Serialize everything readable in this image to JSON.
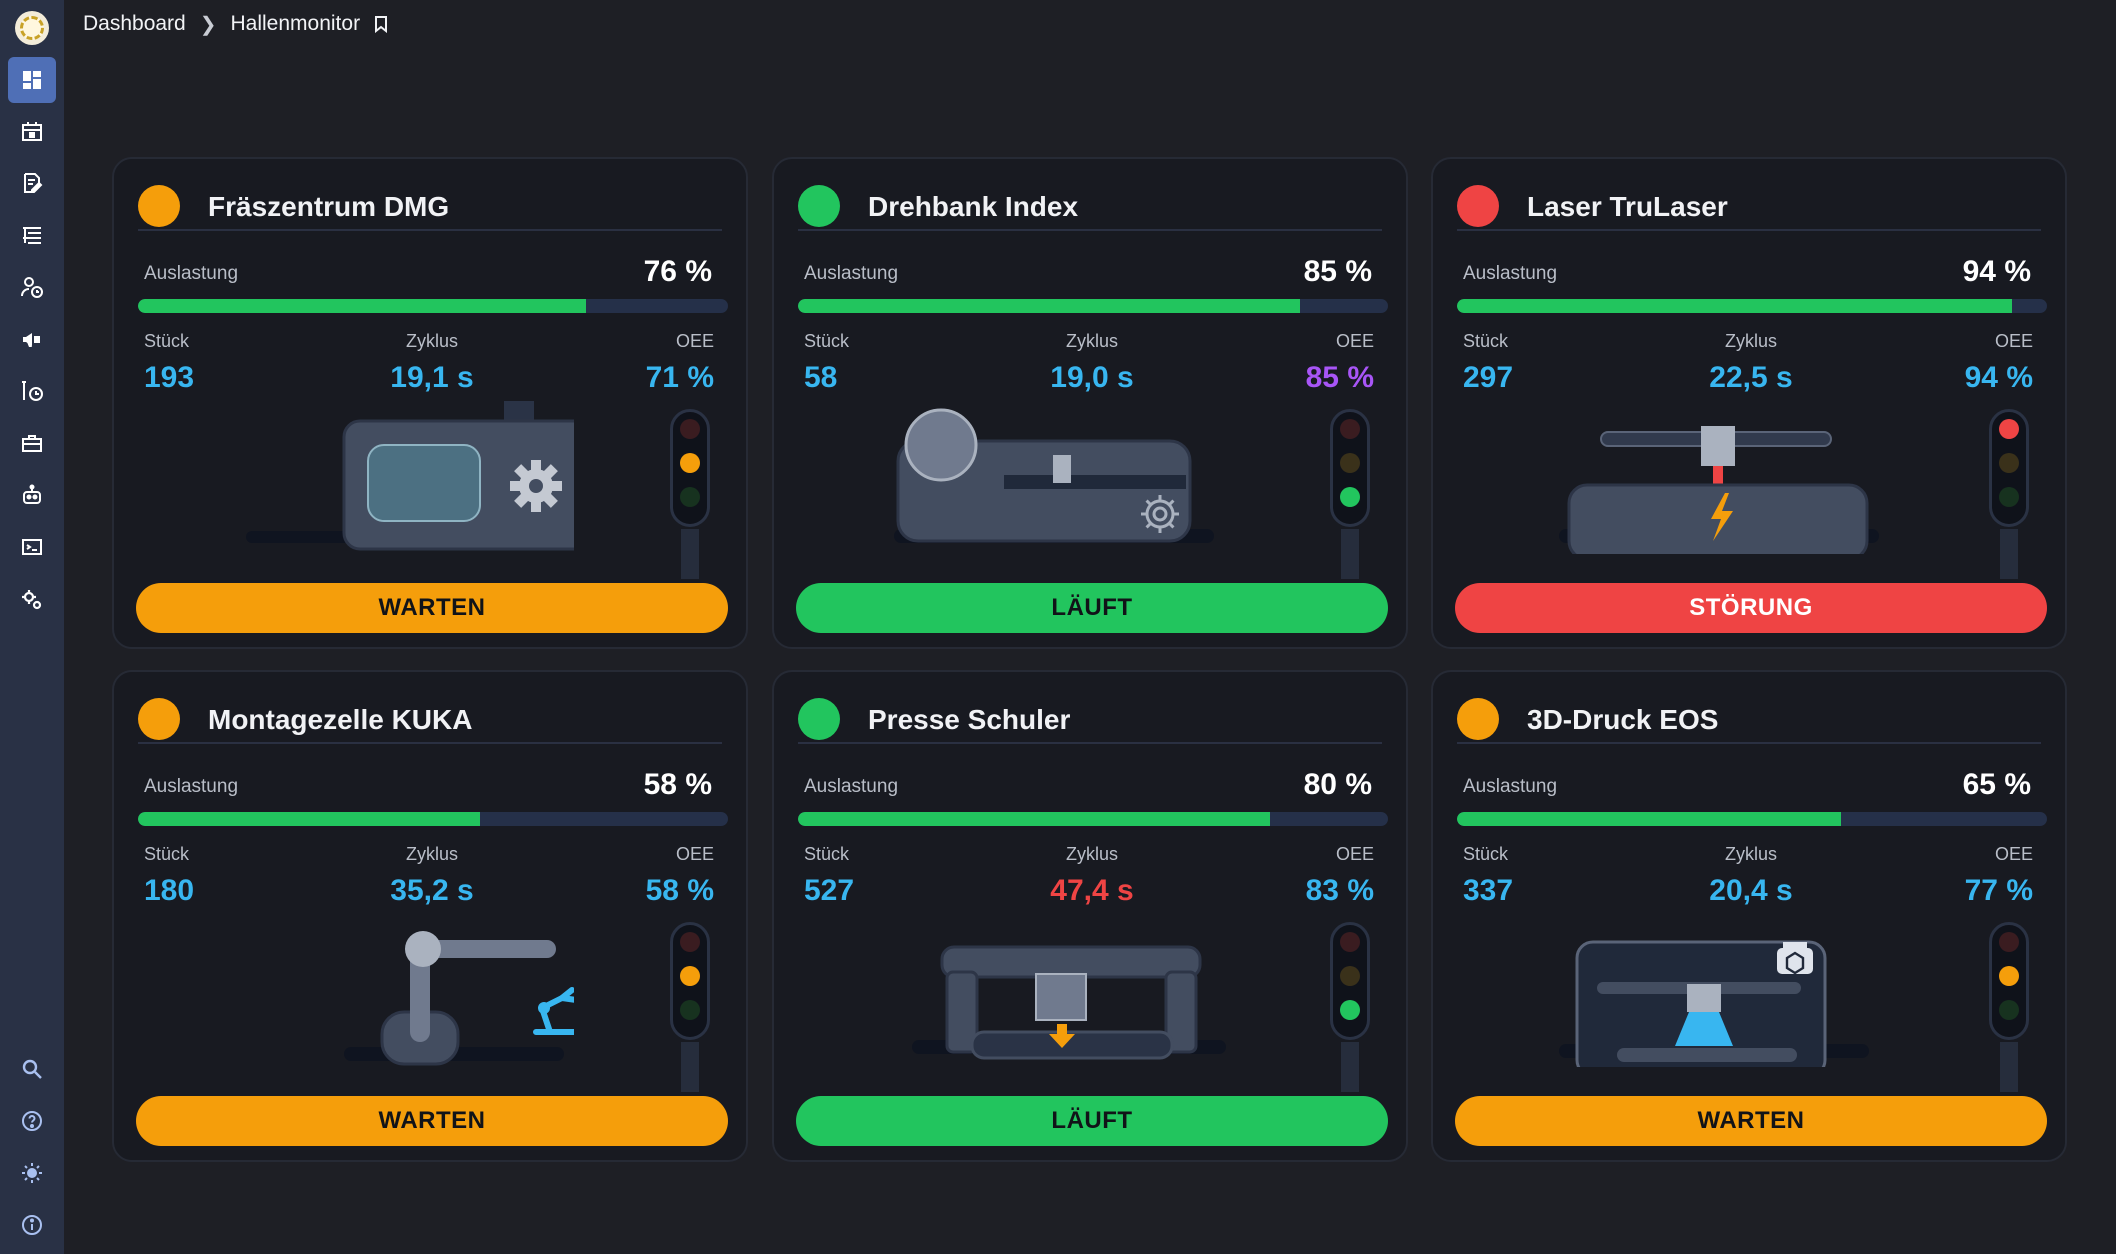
{
  "header": {
    "breadcrumb_root": "Dashboard",
    "breadcrumb_current": "Hallenmonitor"
  },
  "sidebar": {
    "items": [
      {
        "icon": "dashboard-icon",
        "active": true
      },
      {
        "icon": "building-calendar-icon",
        "active": false
      },
      {
        "icon": "document-edit-icon",
        "active": false
      },
      {
        "icon": "hierarchy-list-icon",
        "active": false
      },
      {
        "icon": "user-clock-icon",
        "active": false
      },
      {
        "icon": "megaphone-icon",
        "active": false
      },
      {
        "icon": "tool-clock-icon",
        "active": false
      },
      {
        "icon": "toolbox-icon",
        "active": false
      },
      {
        "icon": "robot-icon",
        "active": false
      },
      {
        "icon": "terminal-window-icon",
        "active": false
      },
      {
        "icon": "settings-gears-icon",
        "active": false
      }
    ],
    "bottom_items": [
      {
        "icon": "search-icon"
      },
      {
        "icon": "help-icon"
      },
      {
        "icon": "theme-sun-icon"
      },
      {
        "icon": "info-icon"
      }
    ]
  },
  "labels": {
    "auslastung": "Auslastung",
    "stueck": "Stück",
    "zyklus": "Zyklus",
    "oee": "OEE"
  },
  "colors": {
    "warten": "#f59e0b",
    "laeuft": "#22c55e",
    "stoerung": "#ef4444",
    "value_blue": "#38b6f0",
    "value_purple": "#a855f7",
    "value_red": "#ef4444"
  },
  "machines": [
    {
      "name": "Fräszentrum DMG",
      "status": "warten",
      "status_label": "WARTEN",
      "auslastung": "76 %",
      "auslastung_value": 76,
      "stueck": "193",
      "zyklus": "19,1 s",
      "zyklus_color": "#38b6f0",
      "oee": "71 %",
      "oee_color": "#38b6f0",
      "illustration": "milling-machine"
    },
    {
      "name": "Drehbank Index",
      "status": "laeuft",
      "status_label": "LÄUFT",
      "auslastung": "85 %",
      "auslastung_value": 85,
      "stueck": "58",
      "zyklus": "19,0 s",
      "zyklus_color": "#38b6f0",
      "oee": "85 %",
      "oee_color": "#a855f7",
      "illustration": "lathe"
    },
    {
      "name": "Laser TruLaser",
      "status": "stoerung",
      "status_label": "STÖRUNG",
      "auslastung": "94 %",
      "auslastung_value": 94,
      "stueck": "297",
      "zyklus": "22,5 s",
      "zyklus_color": "#38b6f0",
      "oee": "94 %",
      "oee_color": "#38b6f0",
      "illustration": "laser-cutter"
    },
    {
      "name": "Montagezelle KUKA",
      "status": "warten",
      "status_label": "WARTEN",
      "auslastung": "58 %",
      "auslastung_value": 58,
      "stueck": "180",
      "zyklus": "35,2 s",
      "zyklus_color": "#38b6f0",
      "oee": "58 %",
      "oee_color": "#38b6f0",
      "illustration": "robot-arm"
    },
    {
      "name": "Presse Schuler",
      "status": "laeuft",
      "status_label": "LÄUFT",
      "auslastung": "80 %",
      "auslastung_value": 80,
      "stueck": "527",
      "zyklus": "47,4 s",
      "zyklus_color": "#ef4444",
      "oee": "83 %",
      "oee_color": "#38b6f0",
      "illustration": "press"
    },
    {
      "name": "3D-Druck EOS",
      "status": "warten",
      "status_label": "WARTEN",
      "auslastung": "65 %",
      "auslastung_value": 65,
      "stueck": "337",
      "zyklus": "20,4 s",
      "zyklus_color": "#38b6f0",
      "oee": "77 %",
      "oee_color": "#38b6f0",
      "illustration": "3d-printer"
    }
  ]
}
